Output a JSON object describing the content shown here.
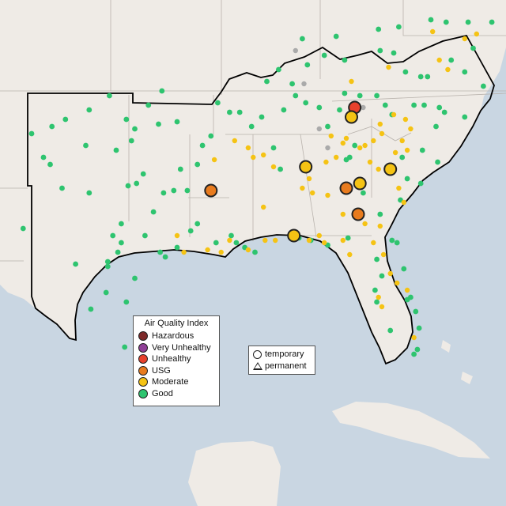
{
  "colors": {
    "Hazardous": "#7e2a2a",
    "Very Unhealthy": "#8f3f97",
    "Unhealthy": "#e8412c",
    "USG": "#e87b1e",
    "Moderate": "#f5c314",
    "Good": "#2ec46f",
    "Unknown": "#aaaaaa",
    "land": "#efebe6",
    "water": "#c9d6e2"
  },
  "aqi_legend": {
    "title": "Air Quality Index",
    "items": [
      "Hazardous",
      "Very Unhealthy",
      "Unhealthy",
      "USG",
      "Moderate",
      "Good"
    ]
  },
  "type_legend": {
    "temporary": "temporary",
    "permanent": "permanent"
  },
  "monitors": {
    "large": [
      {
        "lon": -83.9,
        "lat": 36.0,
        "cat": "Unhealthy"
      },
      {
        "lon": -84.1,
        "lat": 35.6,
        "cat": "Moderate"
      },
      {
        "lon": -86.8,
        "lat": 33.5,
        "cat": "Moderate"
      },
      {
        "lon": -83.6,
        "lat": 32.8,
        "cat": "Moderate"
      },
      {
        "lon": -81.8,
        "lat": 33.4,
        "cat": "Moderate"
      },
      {
        "lon": -87.5,
        "lat": 30.6,
        "cat": "Moderate"
      },
      {
        "lon": -92.4,
        "lat": 32.5,
        "cat": "USG"
      },
      {
        "lon": -84.4,
        "lat": 32.6,
        "cat": "USG"
      },
      {
        "lon": -83.7,
        "lat": 31.5,
        "cat": "USG"
      }
    ],
    "moderate": [
      [
        -94.4,
        30.6
      ],
      [
        -91.8,
        29.9
      ],
      [
        -92.6,
        30.0
      ],
      [
        -94.0,
        29.9
      ],
      [
        -91.3,
        30.4
      ],
      [
        -90.2,
        30.0
      ],
      [
        -89.2,
        30.4
      ],
      [
        -88.6,
        30.4
      ],
      [
        -86.6,
        30.4
      ],
      [
        -86.0,
        30.6
      ],
      [
        -85.7,
        30.3
      ],
      [
        -89.9,
        33.9
      ],
      [
        -89.3,
        34.0
      ],
      [
        -92.2,
        33.8
      ],
      [
        -90.2,
        34.3
      ],
      [
        -91.0,
        34.6
      ],
      [
        -89.3,
        31.8
      ],
      [
        -88.7,
        33.5
      ],
      [
        -86.4,
        32.4
      ],
      [
        -87.0,
        32.6
      ],
      [
        -85.5,
        32.3
      ],
      [
        -85.6,
        33.7
      ],
      [
        -84.4,
        34.7
      ],
      [
        -83.3,
        34.4
      ],
      [
        -83.0,
        33.7
      ],
      [
        -82.5,
        33.4
      ],
      [
        -84.6,
        34.5
      ],
      [
        -85.3,
        34.8
      ],
      [
        -85.0,
        33.9
      ],
      [
        -86.6,
        33.0
      ],
      [
        -83.6,
        34.3
      ],
      [
        -82.8,
        34.6
      ],
      [
        -82.3,
        34.9
      ],
      [
        -81.5,
        34.1
      ],
      [
        -81.1,
        34.6
      ],
      [
        -80.6,
        35.1
      ],
      [
        -81.6,
        35.7
      ],
      [
        -82.4,
        35.3
      ],
      [
        -80.9,
        35.5
      ],
      [
        -80.8,
        34.2
      ],
      [
        -81.3,
        32.6
      ],
      [
        -81.0,
        32.0
      ],
      [
        -84.6,
        31.5
      ],
      [
        -83.3,
        31.1
      ],
      [
        -82.4,
        31.0
      ],
      [
        -82.8,
        30.3
      ],
      [
        -82.2,
        29.8
      ],
      [
        -81.8,
        29.0
      ],
      [
        -82.5,
        28.0
      ],
      [
        -82.3,
        27.6
      ],
      [
        -81.4,
        28.6
      ],
      [
        -80.8,
        28.3
      ],
      [
        -80.4,
        26.3
      ],
      [
        -79.3,
        39.2
      ],
      [
        -81.9,
        37.7
      ],
      [
        -84.1,
        37.1
      ],
      [
        -78.4,
        37.6
      ],
      [
        -77.4,
        38.9
      ],
      [
        -78.9,
        38.0
      ],
      [
        -76.7,
        39.1
      ],
      [
        -84.2,
        29.8
      ],
      [
        -84.6,
        30.4
      ]
    ],
    "good": [
      [
        -99.6,
        35.9
      ],
      [
        -97.4,
        35.5
      ],
      [
        -96.1,
        36.1
      ],
      [
        -95.5,
        35.3
      ],
      [
        -98.4,
        36.5
      ],
      [
        -97.1,
        34.6
      ],
      [
        -98.0,
        34.2
      ],
      [
        -95.3,
        36.7
      ],
      [
        -96.9,
        35.1
      ],
      [
        -99.8,
        34.4
      ],
      [
        -101.8,
        35.2
      ],
      [
        -102.3,
        33.9
      ],
      [
        -101.2,
        32.6
      ],
      [
        -99.6,
        32.4
      ],
      [
        -97.3,
        32.7
      ],
      [
        -96.8,
        32.8
      ],
      [
        -96.4,
        33.2
      ],
      [
        -95.2,
        32.4
      ],
      [
        -94.6,
        32.5
      ],
      [
        -95.8,
        31.6
      ],
      [
        -97.7,
        31.1
      ],
      [
        -98.2,
        30.6
      ],
      [
        -97.9,
        29.9
      ],
      [
        -98.5,
        29.5
      ],
      [
        -98.5,
        29.3
      ],
      [
        -97.7,
        30.3
      ],
      [
        -96.3,
        30.6
      ],
      [
        -95.4,
        29.9
      ],
      [
        -95.1,
        29.7
      ],
      [
        -94.4,
        30.1
      ],
      [
        -93.6,
        30.8
      ],
      [
        -93.2,
        31.1
      ],
      [
        -93.8,
        32.5
      ],
      [
        -92.1,
        30.3
      ],
      [
        -91.2,
        30.6
      ],
      [
        -90.9,
        30.3
      ],
      [
        -90.4,
        30.1
      ],
      [
        -89.8,
        29.9
      ],
      [
        -93.2,
        33.6
      ],
      [
        -94.2,
        33.4
      ],
      [
        -92.9,
        34.4
      ],
      [
        -92.4,
        34.8
      ],
      [
        -94.4,
        35.4
      ],
      [
        -92.0,
        36.2
      ],
      [
        -91.3,
        35.8
      ],
      [
        -90.7,
        35.8
      ],
      [
        -90.0,
        35.2
      ],
      [
        -89.4,
        35.6
      ],
      [
        -88.7,
        34.3
      ],
      [
        -88.3,
        33.4
      ],
      [
        -88.1,
        35.9
      ],
      [
        -87.4,
        36.5
      ],
      [
        -86.8,
        36.2
      ],
      [
        -86.0,
        36.0
      ],
      [
        -85.5,
        35.2
      ],
      [
        -84.8,
        35.9
      ],
      [
        -84.5,
        36.6
      ],
      [
        -83.6,
        36.5
      ],
      [
        -82.6,
        36.5
      ],
      [
        -82.1,
        36.1
      ],
      [
        -81.7,
        35.7
      ],
      [
        -80.4,
        36.1
      ],
      [
        -79.8,
        36.1
      ],
      [
        -78.9,
        36.0
      ],
      [
        -78.6,
        35.8
      ],
      [
        -77.4,
        35.6
      ],
      [
        -76.3,
        36.9
      ],
      [
        -77.4,
        37.5
      ],
      [
        -78.2,
        38.0
      ],
      [
        -79.6,
        37.3
      ],
      [
        -80.0,
        37.3
      ],
      [
        -80.9,
        37.5
      ],
      [
        -81.6,
        38.3
      ],
      [
        -82.4,
        38.4
      ],
      [
        -84.5,
        38.0
      ],
      [
        -85.7,
        38.2
      ],
      [
        -86.7,
        37.8
      ],
      [
        -87.6,
        37.0
      ],
      [
        -88.4,
        37.6
      ],
      [
        -89.1,
        37.1
      ],
      [
        -83.9,
        34.4
      ],
      [
        -84.2,
        33.9
      ],
      [
        -83.4,
        32.4
      ],
      [
        -81.2,
        32.1
      ],
      [
        -80.0,
        32.8
      ],
      [
        -79.0,
        33.7
      ],
      [
        -81.7,
        30.4
      ],
      [
        -81.4,
        30.3
      ],
      [
        -82.6,
        29.6
      ],
      [
        -82.3,
        28.9
      ],
      [
        -81.0,
        29.2
      ],
      [
        -80.8,
        27.9
      ],
      [
        -80.1,
        26.7
      ],
      [
        -80.2,
        25.8
      ],
      [
        -80.4,
        25.6
      ],
      [
        -81.8,
        26.6
      ],
      [
        -82.6,
        27.8
      ],
      [
        -82.7,
        28.3
      ],
      [
        -80.6,
        28.0
      ],
      [
        -80.3,
        27.4
      ],
      [
        -87.2,
        30.5
      ],
      [
        -85.5,
        30.2
      ],
      [
        -86.5,
        30.4
      ],
      [
        -84.3,
        30.5
      ],
      [
        -82.4,
        31.5
      ],
      [
        -81.1,
        33.9
      ],
      [
        -84.4,
        33.8
      ],
      [
        -79.1,
        35.2
      ],
      [
        -80.8,
        33.0
      ],
      [
        -82.0,
        33.5
      ],
      [
        -97.5,
        25.9
      ],
      [
        -97.4,
        27.8
      ],
      [
        -96.9,
        28.8
      ],
      [
        -99.5,
        27.5
      ],
      [
        -103.5,
        30.9
      ],
      [
        -100.4,
        29.4
      ],
      [
        -98.6,
        28.2
      ],
      [
        -101.9,
        33.6
      ],
      [
        -103.0,
        34.9
      ],
      [
        -101.0,
        35.5
      ],
      [
        -87.0,
        38.9
      ],
      [
        -85.0,
        39.0
      ],
      [
        -82.5,
        39.3
      ],
      [
        -81.3,
        39.4
      ],
      [
        -79.4,
        39.7
      ],
      [
        -78.5,
        39.6
      ],
      [
        -77.2,
        39.6
      ],
      [
        -75.8,
        39.6
      ],
      [
        -76.9,
        38.5
      ],
      [
        -79.9,
        34.2
      ]
    ],
    "unknown": [
      [
        -86.0,
        35.1
      ],
      [
        -87.4,
        38.4
      ],
      [
        -83.4,
        36.0
      ],
      [
        -85.5,
        34.3
      ],
      [
        -86.9,
        37.0
      ]
    ]
  }
}
